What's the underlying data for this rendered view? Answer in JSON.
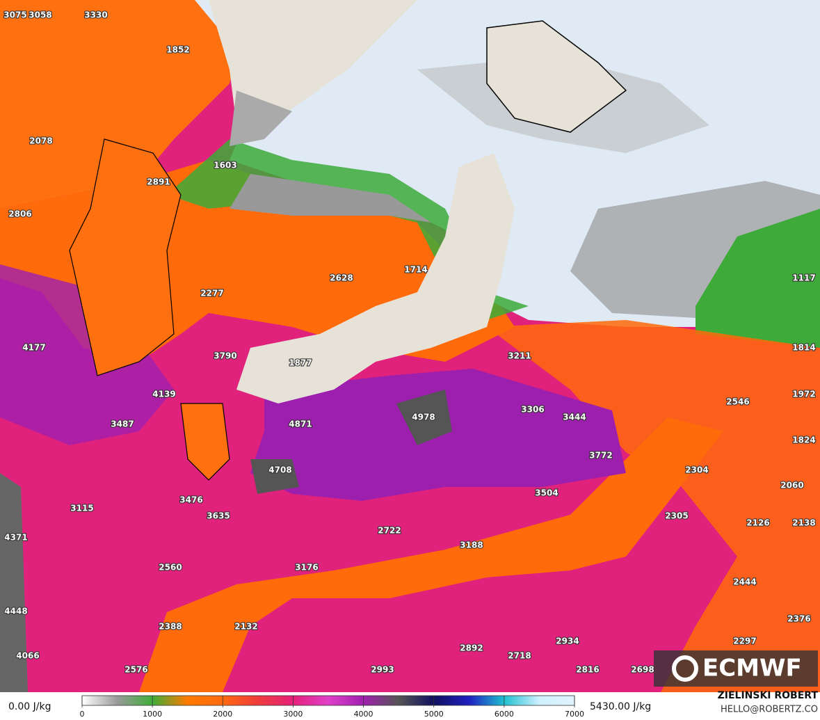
{
  "map": {
    "labels": [
      3075,
      3058,
      3330,
      1852,
      2078,
      1603,
      2891,
      2806,
      1714,
      2628,
      2277,
      1117,
      4177,
      3790,
      1877,
      3211,
      1814,
      4139,
      2546,
      1972,
      3487,
      4978,
      3306,
      3444,
      4871,
      1824,
      3772,
      4708,
      2304,
      2060,
      3476,
      3504,
      3115,
      3635,
      2305,
      2126,
      2138,
      4371,
      2722,
      3188,
      2560,
      3176,
      2444,
      4448,
      2376,
      2388,
      2132,
      2934,
      2297,
      2892,
      2718,
      4066,
      2576,
      2993,
      2816,
      2698
    ],
    "colorbar": {
      "min_label": "0.00 J/kg",
      "max_label": "5430.00 J/kg",
      "range": [
        0,
        7000
      ],
      "ticks": [
        0,
        1000,
        2000,
        3000,
        4000,
        5000,
        6000,
        7000
      ],
      "colors": [
        "#ffffff",
        "#9a9a9a",
        "#3fae3a",
        "#ff7a00",
        "#ff6a10",
        "#f03c3c",
        "#e6207a",
        "#e040c8",
        "#a020b0",
        "#555555",
        "#101060",
        "#2020c0",
        "#20c0d0",
        "#d0f0ff",
        "#e0f4ff"
      ]
    },
    "logo": "ECMWF",
    "credit": {
      "name": "ZIELINSKI ROBERT",
      "email": "HELLO@ROBERTZ.CO"
    }
  }
}
